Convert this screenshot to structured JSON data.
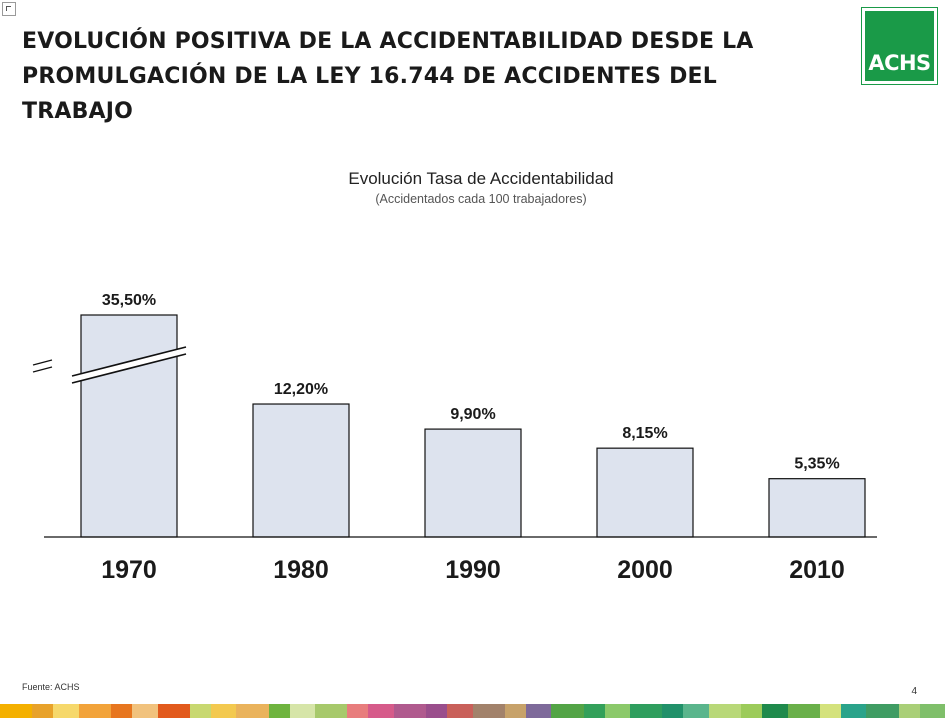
{
  "page": {
    "title": "EVOLUCIÓN POSITIVA DE LA ACCIDENTABILIDAD DESDE LA PROMULGACIÓN DE LA LEY 16.744 DE ACCIDENTES DEL TRABAJO",
    "logo_text": "ACHS",
    "source": "Fuente: ACHS",
    "page_number": "4"
  },
  "colors": {
    "bar_fill": "#dde3ee",
    "bar_stroke": "#111111",
    "brand_green": "#1a9a48",
    "strip": [
      "#f4b000",
      "#e8a22a",
      "#f6d86b",
      "#f2a33a",
      "#e7761f",
      "#f1c27d",
      "#e25a1d",
      "#c8d870",
      "#f3c94f",
      "#eab35c",
      "#6fb43f",
      "#d6e5a8",
      "#a7c96b",
      "#e87d7d",
      "#d65b8a",
      "#b05a8e",
      "#9a4e8c",
      "#c9605a",
      "#a2826b",
      "#c7a26a",
      "#7e6a9a",
      "#53a446",
      "#33a05a",
      "#8bc96a",
      "#2f9e5e",
      "#21916a",
      "#5ab58c",
      "#b8d878",
      "#9ccb5a",
      "#1f8a4c",
      "#6ab04a",
      "#d4e27c",
      "#2aa38a",
      "#3f9c63",
      "#a9cf77",
      "#7fbf6a"
    ]
  },
  "chart_data": {
    "type": "bar",
    "title": "Evolución Tasa de Accidentabilidad",
    "subtitle": "(Accidentados cada 100 trabajadores)",
    "categories": [
      "1970",
      "1980",
      "1990",
      "2000",
      "2010"
    ],
    "values": [
      35.5,
      12.2,
      9.9,
      8.15,
      5.35
    ],
    "data_labels": [
      "35,50%",
      "12,20%",
      "9,90%",
      "8,15%",
      "5,35%"
    ],
    "unit": "%",
    "axis_break": true,
    "grid": false,
    "legend": "none"
  }
}
